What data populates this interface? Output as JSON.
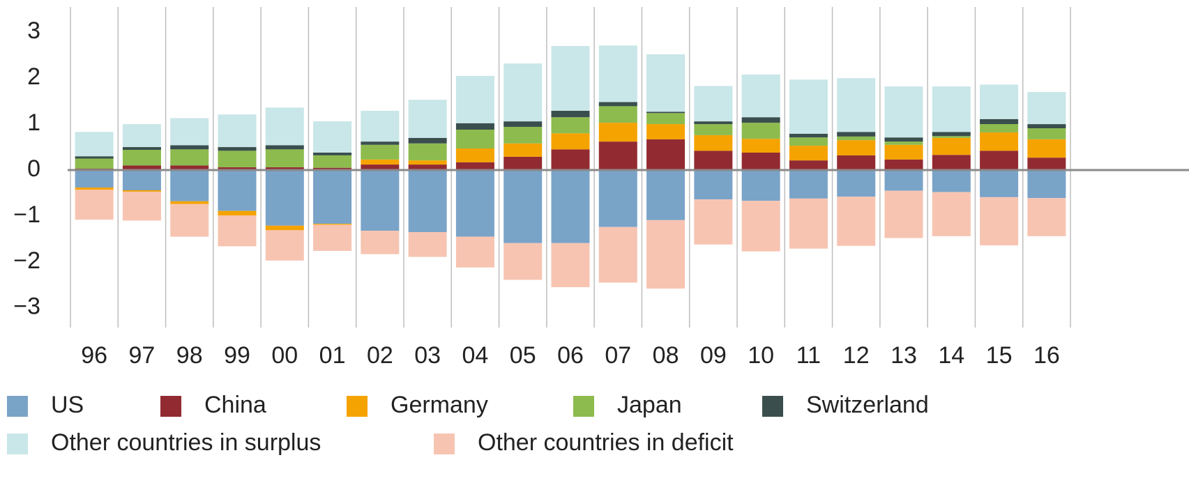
{
  "chart_data": {
    "type": "stacked_bar",
    "categories": [
      "96",
      "97",
      "98",
      "99",
      "00",
      "01",
      "02",
      "03",
      "04",
      "05",
      "06",
      "07",
      "08",
      "09",
      "10",
      "11",
      "12",
      "13",
      "14",
      "15",
      "16"
    ],
    "series": [
      {
        "name": "US",
        "color": "#7aa3c8",
        "values": [
          -0.38,
          -0.44,
          -0.68,
          -0.89,
          -1.21,
          -1.17,
          -1.32,
          -1.35,
          -1.45,
          -1.59,
          -1.59,
          -1.24,
          -1.09,
          -0.64,
          -0.67,
          -0.62,
          -0.58,
          -0.45,
          -0.48,
          -0.59,
          -0.61
        ]
      },
      {
        "name": "China",
        "color": "#922b31",
        "values": [
          0.03,
          0.1,
          0.1,
          0.06,
          0.06,
          0.05,
          0.12,
          0.12,
          0.17,
          0.29,
          0.45,
          0.62,
          0.67,
          0.42,
          0.38,
          0.21,
          0.32,
          0.23,
          0.33,
          0.42,
          0.27
        ]
      },
      {
        "name": "Germany",
        "color": "#f5a300",
        "values": [
          -0.05,
          -0.03,
          -0.06,
          -0.1,
          -0.1,
          -0.02,
          0.11,
          0.09,
          0.3,
          0.29,
          0.35,
          0.41,
          0.33,
          0.34,
          0.3,
          0.32,
          0.33,
          0.32,
          0.37,
          0.4,
          0.4
        ]
      },
      {
        "name": "Japan",
        "color": "#8dbb4e",
        "values": [
          0.22,
          0.34,
          0.35,
          0.36,
          0.39,
          0.27,
          0.32,
          0.37,
          0.41,
          0.36,
          0.35,
          0.36,
          0.24,
          0.24,
          0.35,
          0.18,
          0.08,
          0.07,
          0.04,
          0.18,
          0.24
        ]
      },
      {
        "name": "Switzerland",
        "color": "#3a4f4d",
        "values": [
          0.05,
          0.06,
          0.09,
          0.08,
          0.09,
          0.06,
          0.07,
          0.12,
          0.14,
          0.12,
          0.14,
          0.09,
          0.03,
          0.06,
          0.12,
          0.08,
          0.1,
          0.09,
          0.09,
          0.11,
          0.09
        ]
      },
      {
        "name": "Other countries in surplus",
        "color": "#c9e6e8",
        "values": [
          0.53,
          0.5,
          0.59,
          0.71,
          0.82,
          0.68,
          0.67,
          0.83,
          1.03,
          1.26,
          1.41,
          1.23,
          1.25,
          0.77,
          0.93,
          1.18,
          1.17,
          1.11,
          0.99,
          0.75,
          0.7
        ]
      },
      {
        "name": "Other countries in deficit",
        "color": "#f7c4b2",
        "values": [
          -0.65,
          -0.63,
          -0.71,
          -0.67,
          -0.66,
          -0.57,
          -0.51,
          -0.54,
          -0.67,
          -0.8,
          -0.96,
          -1.21,
          -1.49,
          -0.98,
          -1.1,
          -1.09,
          -1.07,
          -1.03,
          -0.96,
          -1.05,
          -0.83
        ]
      }
    ],
    "ylim": [
      -3.55,
      3.55
    ],
    "yticks": [
      {
        "value": -3,
        "label": "−3"
      },
      {
        "value": -2,
        "label": "−2"
      },
      {
        "value": -1,
        "label": "−1"
      },
      0,
      1,
      2,
      3
    ]
  }
}
